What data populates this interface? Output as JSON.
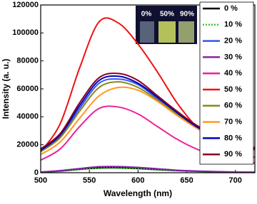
{
  "chart_data": {
    "type": "line",
    "x_label": "Wavelength (nm)",
    "y_label": "Intensity (a. u.)",
    "x": [
      500,
      520,
      540,
      560,
      580,
      600,
      620,
      640,
      660,
      680,
      700,
      720
    ],
    "xlim": [
      500,
      720
    ],
    "xticks": [
      500,
      550,
      600,
      650,
      700
    ],
    "ylim": [
      0,
      120000
    ],
    "yticks": [
      0,
      20000,
      40000,
      60000,
      80000,
      100000,
      120000
    ],
    "legend_position": "right",
    "inset_labels": [
      "0%",
      "50%",
      "90%"
    ],
    "series": [
      {
        "name": "0 %",
        "color": "#000000",
        "values": [
          400,
          1200,
          2500,
          3400,
          3500,
          3000,
          2200,
          1500,
          1000,
          700,
          400,
          300
        ]
      },
      {
        "name": "10 %",
        "color": "#33cc33",
        "dashed": true,
        "values": [
          300,
          1000,
          2200,
          3100,
          3200,
          2800,
          2000,
          1400,
          900,
          600,
          400,
          300
        ]
      },
      {
        "name": "20 %",
        "color": "#3355ee",
        "values": [
          15000,
          26000,
          46000,
          64000,
          67000,
          63000,
          53000,
          42000,
          32000,
          25000,
          19500,
          16500
        ]
      },
      {
        "name": "30 %",
        "color": "#8822aa",
        "values": [
          500,
          1500,
          3000,
          4300,
          4400,
          3800,
          2800,
          1800,
          1200,
          800,
          500,
          400
        ]
      },
      {
        "name": "40 %",
        "color": "#ee2299",
        "values": [
          9000,
          17000,
          33000,
          46000,
          47000,
          42000,
          33000,
          24000,
          17000,
          12000,
          9000,
          7000
        ]
      },
      {
        "name": "50 %",
        "color": "#ee1111",
        "values": [
          15000,
          35000,
          75000,
          108000,
          107000,
          92000,
          72000,
          50000,
          33000,
          22000,
          15000,
          11000
        ]
      },
      {
        "name": "60 %",
        "color": "#888822",
        "values": [
          15000,
          25000,
          44000,
          61000,
          65000,
          61000,
          52000,
          42000,
          33000,
          26000,
          21000,
          17500
        ]
      },
      {
        "name": "70 %",
        "color": "#ff9922",
        "values": [
          13000,
          22000,
          39000,
          55000,
          61000,
          59000,
          51000,
          41000,
          32000,
          25000,
          19000,
          16000
        ]
      },
      {
        "name": "80 %",
        "color": "#0000bb",
        "values": [
          16000,
          27000,
          48000,
          66000,
          69000,
          64000,
          54000,
          43000,
          33000,
          26000,
          20000,
          17000
        ]
      },
      {
        "name": "90 %",
        "color": "#880022",
        "values": [
          17000,
          28000,
          50000,
          68000,
          71000,
          66000,
          55000,
          44000,
          34000,
          27000,
          21000,
          18000
        ]
      }
    ]
  }
}
